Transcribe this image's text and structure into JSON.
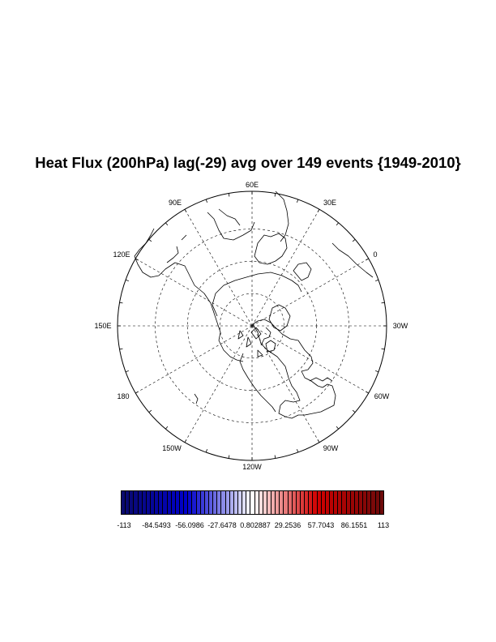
{
  "title": "Heat Flux (200hPa) lag(-29) avg over 149 events {1949-2010}",
  "map": {
    "projection": "north-polar-stereographic",
    "central_longitude": "120W at bottom",
    "gridlines": "dashed, every 30 degrees longitude and latitude circles",
    "longitude_labels": [
      "60E",
      "30E",
      "0",
      "30W",
      "60W",
      "90W",
      "120W",
      "150W",
      "180",
      "150E",
      "120E",
      "90E"
    ]
  },
  "colorbar": {
    "min_color": "#0a0a6e",
    "mid_color": "#ffffff",
    "max_color": "#6e0a0a",
    "labels": [
      "-113",
      "-84.5493",
      "-56.0986",
      "-27.6478",
      "0.802887",
      "29.2536",
      "57.7043",
      "86.1551",
      "113"
    ]
  }
}
